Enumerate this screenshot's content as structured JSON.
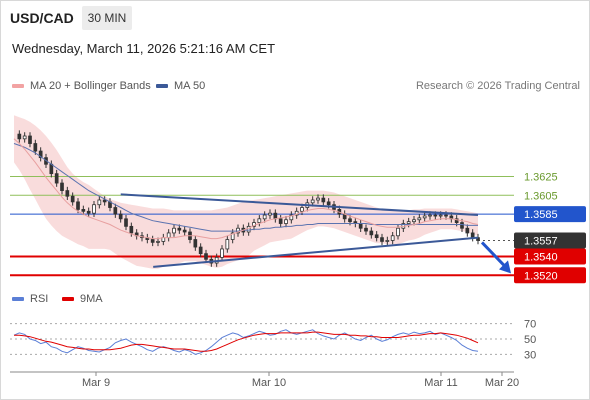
{
  "header": {
    "symbol": "USD/CAD",
    "timeframe": "30 MIN",
    "datetime": "Wednesday, March 11, 2026 5:21:16 AM CET"
  },
  "legend": {
    "ma20": "MA 20 + Bollinger Bands",
    "ma50": "MA 50",
    "rsi": "RSI",
    "ma9": "9MA"
  },
  "credit": "Research © 2026 Trading Central",
  "colors": {
    "candle": "#333333",
    "bollinger_fill": "#f8d6d6",
    "ma20": "#e8a0a0",
    "ma50": "#5b73b0",
    "trendline": "#3b5998",
    "pivot": "#2255cc",
    "support": "#e00000",
    "resistance": "#8fbf5a",
    "last_price": "#333333",
    "rsi": "#5b7fd6",
    "rsi_ma": "#e00000"
  },
  "chart_data": [
    {
      "type": "candlestick",
      "title": "USD/CAD",
      "x_categories": [
        "Mar 9",
        "Mar 10",
        "Mar 11",
        "Mar 20"
      ],
      "ylim": [
        1.3515,
        1.3685
      ],
      "levels": [
        {
          "label": "1.3625",
          "value": 1.3625,
          "kind": "resistance"
        },
        {
          "label": "1.3605",
          "value": 1.3605,
          "kind": "resistance"
        },
        {
          "label": "1.3585",
          "value": 1.3585,
          "kind": "pivot"
        },
        {
          "label": "1.3557",
          "value": 1.3557,
          "kind": "last"
        },
        {
          "label": "1.3540",
          "value": 1.354,
          "kind": "support"
        },
        {
          "label": "1.3520",
          "value": 1.352,
          "kind": "support"
        }
      ],
      "trendlines": [
        {
          "from": [
            0.23,
            1.3606
          ],
          "to": [
            1.0,
            1.3584
          ]
        },
        {
          "from": [
            0.3,
            1.3529
          ],
          "to": [
            1.0,
            1.356
          ]
        }
      ],
      "price_series": [
        1.367,
        1.3665,
        1.3668,
        1.366,
        1.3652,
        1.3645,
        1.3638,
        1.3628,
        1.3618,
        1.361,
        1.3604,
        1.3598,
        1.359,
        1.3588,
        1.3586,
        1.3595,
        1.36,
        1.3598,
        1.3592,
        1.3585,
        1.358,
        1.3572,
        1.3565,
        1.3562,
        1.356,
        1.3558,
        1.3555,
        1.3556,
        1.356,
        1.3565,
        1.357,
        1.3568,
        1.3566,
        1.3558,
        1.355,
        1.3543,
        1.3537,
        1.3533,
        1.3539,
        1.3548,
        1.3558,
        1.3565,
        1.357,
        1.3566,
        1.3572,
        1.3576,
        1.358,
        1.3584,
        1.3586,
        1.358,
        1.3575,
        1.3579,
        1.3584,
        1.3588,
        1.3592,
        1.3597,
        1.36,
        1.3602,
        1.3598,
        1.3595,
        1.359,
        1.3585,
        1.358,
        1.3577,
        1.3575,
        1.357,
        1.3567,
        1.3563,
        1.356,
        1.3556,
        1.3557,
        1.3562,
        1.357,
        1.3575,
        1.3577,
        1.3579,
        1.3581,
        1.3583,
        1.3584,
        1.3583,
        1.3584,
        1.3583,
        1.358,
        1.3576,
        1.357,
        1.3565,
        1.356,
        1.3557
      ],
      "ma20": [
        1.3665,
        1.366,
        1.3654,
        1.3647,
        1.364,
        1.3632,
        1.3624,
        1.3617,
        1.361,
        1.3603,
        1.3597,
        1.3592,
        1.3588,
        1.3585,
        1.3582,
        1.358,
        1.3578,
        1.3576,
        1.3574,
        1.3571,
        1.3568,
        1.3566,
        1.3564,
        1.3562,
        1.3561,
        1.356,
        1.3559,
        1.3559,
        1.356,
        1.356,
        1.356,
        1.3561,
        1.3562,
        1.3562,
        1.3562,
        1.3561,
        1.356,
        1.3559,
        1.3559,
        1.356,
        1.3562,
        1.3564,
        1.3566,
        1.3568,
        1.357,
        1.3573,
        1.3575,
        1.3577,
        1.3579,
        1.358,
        1.3581,
        1.3582,
        1.3583,
        1.3585,
        1.3587,
        1.3589,
        1.359,
        1.3591,
        1.3591,
        1.359,
        1.3589,
        1.3587,
        1.3585,
        1.3583,
        1.3581,
        1.3579,
        1.3577,
        1.3575,
        1.3573,
        1.3572,
        1.3571,
        1.3571,
        1.3571,
        1.3572,
        1.3573,
        1.3574,
        1.3575,
        1.3577,
        1.3578,
        1.3579,
        1.358,
        1.358,
        1.358,
        1.3579,
        1.3578,
        1.3577,
        1.3575,
        1.3574
      ],
      "bollinger_upper": [
        1.369,
        1.3688,
        1.3686,
        1.3683,
        1.3679,
        1.3674,
        1.3668,
        1.3661,
        1.3653,
        1.3644,
        1.3635,
        1.3628,
        1.3623,
        1.3619,
        1.3616,
        1.3612,
        1.3608,
        1.3604,
        1.3601,
        1.3599,
        1.3597,
        1.3596,
        1.3595,
        1.3594,
        1.3593,
        1.3592,
        1.3591,
        1.3591,
        1.3591,
        1.359,
        1.3589,
        1.3589,
        1.3589,
        1.3589,
        1.3589,
        1.3589,
        1.3589,
        1.3589,
        1.359,
        1.3591,
        1.3592,
        1.3594,
        1.3596,
        1.3598,
        1.3599,
        1.36,
        1.3601,
        1.3602,
        1.3603,
        1.3604,
        1.3605,
        1.3606,
        1.3607,
        1.3608,
        1.3609,
        1.361,
        1.361,
        1.361,
        1.361,
        1.3609,
        1.3608,
        1.3606,
        1.3604,
        1.3602,
        1.36,
        1.3598,
        1.3596,
        1.3594,
        1.3592,
        1.359,
        1.3589,
        1.3589,
        1.3589,
        1.3589,
        1.3589,
        1.359,
        1.359,
        1.3591,
        1.3591,
        1.3591,
        1.3591,
        1.3591,
        1.3591,
        1.359,
        1.3589,
        1.3588,
        1.3587,
        1.3586
      ],
      "bollinger_lower": [
        1.364,
        1.3632,
        1.3622,
        1.3611,
        1.3601,
        1.359,
        1.358,
        1.3573,
        1.3567,
        1.3562,
        1.3559,
        1.3556,
        1.3553,
        1.3551,
        1.3548,
        1.3548,
        1.3548,
        1.3548,
        1.3547,
        1.3543,
        1.3539,
        1.3536,
        1.3533,
        1.353,
        1.3529,
        1.3528,
        1.3527,
        1.3527,
        1.3529,
        1.353,
        1.3531,
        1.3533,
        1.3535,
        1.3535,
        1.3535,
        1.3533,
        1.3531,
        1.3529,
        1.3528,
        1.3529,
        1.3532,
        1.3534,
        1.3536,
        1.3538,
        1.3541,
        1.3546,
        1.3549,
        1.3552,
        1.3555,
        1.3556,
        1.3557,
        1.3558,
        1.3559,
        1.3562,
        1.3565,
        1.3568,
        1.357,
        1.3572,
        1.3572,
        1.3571,
        1.357,
        1.3568,
        1.3566,
        1.3564,
        1.3562,
        1.356,
        1.3558,
        1.3556,
        1.3554,
        1.3554,
        1.3553,
        1.3553,
        1.3553,
        1.3555,
        1.3557,
        1.3558,
        1.356,
        1.3563,
        1.3565,
        1.3567,
        1.3569,
        1.3569,
        1.3569,
        1.3568,
        1.3567,
        1.3566,
        1.3563,
        1.3562
      ],
      "ma50": [
        1.366,
        1.3658,
        1.3656,
        1.3653,
        1.365,
        1.3646,
        1.3642,
        1.3638,
        1.3634,
        1.363,
        1.3626,
        1.3622,
        1.3618,
        1.3614,
        1.361,
        1.3607,
        1.3604,
        1.3601,
        1.3598,
        1.3595,
        1.3592,
        1.3589,
        1.3586,
        1.3584,
        1.3582,
        1.358,
        1.3578,
        1.3577,
        1.3576,
        1.3575,
        1.3574,
        1.3573,
        1.3572,
        1.3571,
        1.357,
        1.3569,
        1.3568,
        1.3567,
        1.3567,
        1.3567,
        1.3567,
        1.3567,
        1.3567,
        1.3568,
        1.3568,
        1.3569,
        1.3569,
        1.357,
        1.357,
        1.3571,
        1.3571,
        1.3572,
        1.3572,
        1.3573,
        1.3573,
        1.3574,
        1.3574,
        1.3575,
        1.3575,
        1.3575,
        1.3575,
        1.3575,
        1.3575,
        1.3575,
        1.3575,
        1.3575,
        1.3575,
        1.3574,
        1.3574,
        1.3574,
        1.3574,
        1.3574,
        1.3574,
        1.3574,
        1.3574,
        1.3574,
        1.3574,
        1.3574,
        1.3574,
        1.3574,
        1.3574,
        1.3574,
        1.3574,
        1.3574,
        1.3574,
        1.3573,
        1.3573,
        1.3573
      ]
    },
    {
      "type": "line",
      "title": "RSI",
      "yticks": [
        70,
        50,
        30
      ],
      "ylim": [
        20,
        80
      ],
      "series": [
        {
          "name": "RSI",
          "values": [
            55,
            58,
            56,
            50,
            48,
            44,
            46,
            40,
            38,
            34,
            32,
            36,
            40,
            38,
            35,
            34,
            33,
            36,
            39,
            45,
            48,
            50,
            46,
            43,
            40,
            36,
            34,
            38,
            40,
            38,
            35,
            33,
            36,
            34,
            30,
            32,
            35,
            40,
            46,
            52,
            55,
            58,
            56,
            52,
            54,
            57,
            60,
            58,
            55,
            56,
            60,
            62,
            58,
            56,
            58,
            60,
            62,
            57,
            54,
            52,
            50,
            55,
            58,
            54,
            50,
            48,
            52,
            55,
            50,
            47,
            49,
            53,
            56,
            58,
            56,
            59,
            57,
            58,
            60,
            56,
            58,
            55,
            52,
            48,
            42,
            38,
            35,
            34
          ]
        },
        {
          "name": "9MA",
          "values": [
            55,
            55,
            54,
            53,
            51,
            49,
            47,
            46,
            44,
            42,
            40,
            39,
            38,
            37,
            37,
            36,
            36,
            36,
            36,
            37,
            38,
            40,
            42,
            43,
            43,
            42,
            41,
            40,
            39,
            38,
            37,
            37,
            37,
            36,
            35,
            34,
            34,
            35,
            37,
            40,
            43,
            46,
            49,
            51,
            53,
            55,
            56,
            57,
            57,
            57,
            58,
            58,
            58,
            58,
            58,
            58,
            59,
            59,
            58,
            57,
            56,
            56,
            56,
            55,
            55,
            54,
            54,
            53,
            53,
            52,
            52,
            52,
            52,
            53,
            54,
            55,
            55,
            56,
            57,
            57,
            58,
            57,
            56,
            55,
            53,
            51,
            48,
            45
          ]
        }
      ]
    }
  ]
}
